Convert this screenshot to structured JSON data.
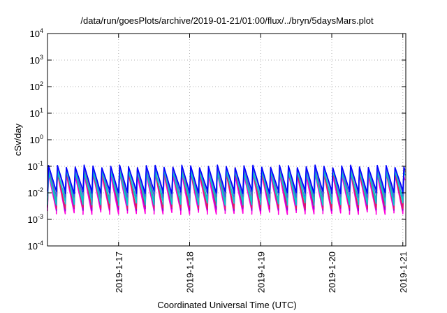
{
  "chart_data": {
    "type": "line",
    "title": "/data/run/goesPlots/archive/2019-01-21/01:00/flux/../bryn/5daysMars.plot",
    "xlabel": "Coordinated Universal Time (UTC)",
    "ylabel": "cSv/day",
    "x_range": [
      "2019-01-16T00:00",
      "2019-01-21T01:00"
    ],
    "x_ticks": [
      "2019-1-17",
      "2019-1-18",
      "2019-1-19",
      "2019-1-20",
      "2019-1-21"
    ],
    "y_scale": "log",
    "y_range": [
      0.0001,
      10000
    ],
    "y_ticks": [
      {
        "base": "10",
        "exp": "4"
      },
      {
        "base": "10",
        "exp": "3"
      },
      {
        "base": "10",
        "exp": "2"
      },
      {
        "base": "10",
        "exp": "1"
      },
      {
        "base": "10",
        "exp": "0"
      },
      {
        "base": "10",
        "exp": "-1"
      },
      {
        "base": "10",
        "exp": "-2"
      },
      {
        "base": "10",
        "exp": "-3"
      },
      {
        "base": "10",
        "exp": "-4"
      }
    ],
    "grid": true,
    "cycles_per_day": 8,
    "series": [
      {
        "color": "#ff00dd",
        "peak": 0.05,
        "trough": 0.0018
      },
      {
        "color": "#9400d3",
        "peak": 0.07,
        "trough": 0.0025
      },
      {
        "color": "#e0205a",
        "peak": 0.06,
        "trough": 0.003
      },
      {
        "color": "#ff4500",
        "peak": 0.08,
        "trough": 0.005
      },
      {
        "color": "#20b2aa",
        "peak": 0.06,
        "trough": 0.006
      },
      {
        "color": "#00ced1",
        "peak": 0.07,
        "trough": 0.004
      },
      {
        "color": "#4169e1",
        "peak": 0.09,
        "trough": 0.008
      },
      {
        "color": "#0000ff",
        "peak": 0.1,
        "trough": 0.011
      }
    ]
  }
}
